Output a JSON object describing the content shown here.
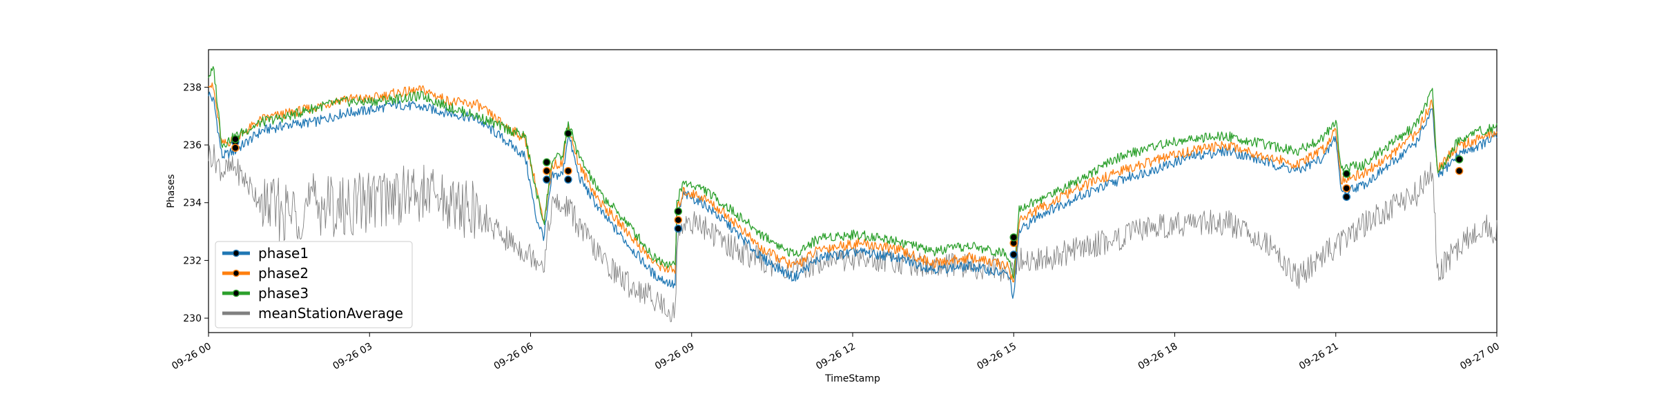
{
  "chart_data": {
    "type": "line",
    "title": "",
    "xlabel": "TimeStamp",
    "ylabel": "Phases",
    "xlim": [
      "2023-09-26 00:00",
      "2023-09-27 00:00"
    ],
    "ylim": [
      229.5,
      239.3
    ],
    "x_ticks": [
      "09-26 00",
      "09-26 03",
      "09-26 06",
      "09-26 09",
      "09-26 12",
      "09-26 15",
      "09-26 18",
      "09-26 21",
      "09-27 00"
    ],
    "y_ticks": [
      230,
      232,
      234,
      236,
      238
    ],
    "grid": false,
    "legend_position": "lower-left",
    "x_hours": [
      0,
      0.1,
      0.25,
      0.5,
      1,
      1.5,
      2,
      2.5,
      3,
      3.5,
      4,
      4.5,
      5,
      5.5,
      5.9,
      6.1,
      6.25,
      6.4,
      6.6,
      6.7,
      6.9,
      7.3,
      7.8,
      8.3,
      8.7,
      8.72,
      8.85,
      9.2,
      9.7,
      10.3,
      10.9,
      11.4,
      12.1,
      12.8,
      13.5,
      14.2,
      14.9,
      15.0,
      15.1,
      15.5,
      16.2,
      17.0,
      17.7,
      18.3,
      19.0,
      19.7,
      20.3,
      20.8,
      21.0,
      21.1,
      21.5,
      22.0,
      22.5,
      22.8,
      22.9,
      23.3,
      23.7,
      24.0
    ],
    "series": [
      {
        "name": "phase1",
        "color": "#1f77b4",
        "values": [
          237.8,
          237.5,
          235.6,
          235.8,
          236.5,
          236.7,
          236.8,
          237.1,
          237.2,
          237.4,
          237.3,
          237.1,
          236.9,
          236.2,
          235.6,
          233.5,
          232.8,
          234.9,
          235.0,
          236.4,
          234.9,
          233.7,
          232.6,
          231.5,
          231.1,
          233.4,
          234.3,
          234.0,
          233.2,
          232.1,
          231.4,
          232.1,
          232.3,
          232.1,
          231.7,
          231.8,
          231.5,
          230.7,
          233.0,
          233.6,
          234.2,
          234.8,
          235.2,
          235.6,
          235.8,
          235.4,
          235.1,
          235.6,
          236.3,
          234.4,
          234.6,
          235.3,
          236.1,
          237.2,
          234.9,
          235.7,
          236.0,
          236.3
        ]
      },
      {
        "name": "phase2",
        "color": "#ff7f0e",
        "values": [
          238.2,
          237.9,
          236.0,
          236.2,
          236.9,
          237.1,
          237.3,
          237.6,
          237.6,
          237.8,
          237.9,
          237.5,
          237.4,
          236.7,
          236.2,
          234.6,
          233.2,
          235.3,
          235.4,
          236.7,
          235.3,
          234.0,
          233.0,
          231.9,
          231.6,
          233.7,
          234.4,
          234.2,
          233.5,
          232.4,
          231.8,
          232.4,
          232.6,
          232.4,
          231.9,
          232.1,
          231.8,
          231.2,
          233.4,
          233.8,
          234.5,
          235.1,
          235.5,
          235.8,
          236.0,
          235.6,
          235.3,
          235.9,
          236.6,
          234.8,
          235.0,
          235.6,
          236.4,
          237.5,
          235.2,
          236.0,
          236.2,
          236.5
        ]
      },
      {
        "name": "phase3",
        "color": "#2ca02c",
        "values": [
          238.4,
          238.6,
          236.0,
          236.3,
          236.8,
          237.0,
          237.3,
          237.5,
          237.5,
          237.6,
          237.7,
          237.3,
          237.0,
          236.6,
          236.3,
          234.4,
          233.3,
          235.5,
          235.6,
          236.8,
          235.6,
          234.3,
          233.3,
          232.1,
          231.8,
          234.0,
          234.7,
          234.5,
          233.8,
          232.9,
          232.2,
          232.8,
          232.9,
          232.7,
          232.3,
          232.5,
          232.2,
          231.5,
          233.8,
          234.1,
          234.8,
          235.6,
          236.0,
          236.2,
          236.3,
          236.0,
          235.8,
          236.3,
          236.9,
          235.2,
          235.3,
          236.0,
          236.7,
          237.9,
          235.0,
          236.2,
          236.5,
          236.6
        ]
      },
      {
        "name": "meanStationAverage",
        "color": "#808080",
        "values": [
          235.7,
          235.6,
          235.1,
          235.2,
          234.0,
          233.6,
          234.0,
          233.8,
          234.1,
          234.3,
          234.3,
          234.0,
          233.6,
          232.8,
          232.3,
          232.1,
          231.9,
          234.0,
          233.8,
          233.9,
          233.2,
          232.1,
          231.2,
          230.7,
          230.1,
          232.5,
          233.4,
          233.2,
          232.5,
          232.0,
          231.6,
          232.0,
          232.1,
          232.0,
          231.8,
          231.8,
          231.7,
          231.6,
          232.0,
          232.0,
          232.4,
          232.8,
          233.2,
          233.3,
          233.3,
          232.7,
          231.4,
          232.3,
          232.4,
          232.6,
          233.2,
          233.8,
          234.3,
          235.1,
          231.6,
          232.5,
          233.2,
          233.0
        ]
      }
    ],
    "markers": [
      {
        "x": 0.5,
        "y": 236.1,
        "color": "#1f77b4"
      },
      {
        "x": 0.5,
        "y": 235.9,
        "color": "#ff7f0e"
      },
      {
        "x": 0.5,
        "y": 236.2,
        "color": "#2ca02c"
      },
      {
        "x": 6.3,
        "y": 234.8,
        "color": "#1f77b4"
      },
      {
        "x": 6.3,
        "y": 235.1,
        "color": "#ff7f0e"
      },
      {
        "x": 6.3,
        "y": 235.4,
        "color": "#2ca02c"
      },
      {
        "x": 6.7,
        "y": 234.8,
        "color": "#1f77b4"
      },
      {
        "x": 6.7,
        "y": 235.1,
        "color": "#ff7f0e"
      },
      {
        "x": 6.7,
        "y": 236.4,
        "color": "#2ca02c"
      },
      {
        "x": 8.75,
        "y": 233.1,
        "color": "#1f77b4"
      },
      {
        "x": 8.75,
        "y": 233.4,
        "color": "#ff7f0e"
      },
      {
        "x": 8.75,
        "y": 233.7,
        "color": "#2ca02c"
      },
      {
        "x": 15.0,
        "y": 232.2,
        "color": "#1f77b4"
      },
      {
        "x": 15.0,
        "y": 232.6,
        "color": "#ff7f0e"
      },
      {
        "x": 15.0,
        "y": 232.8,
        "color": "#2ca02c"
      },
      {
        "x": 21.2,
        "y": 234.2,
        "color": "#1f77b4"
      },
      {
        "x": 21.2,
        "y": 234.5,
        "color": "#ff7f0e"
      },
      {
        "x": 21.2,
        "y": 235.0,
        "color": "#2ca02c"
      },
      {
        "x": 23.3,
        "y": 235.1,
        "color": "#ff7f0e"
      },
      {
        "x": 23.3,
        "y": 235.5,
        "color": "#2ca02c"
      }
    ]
  }
}
